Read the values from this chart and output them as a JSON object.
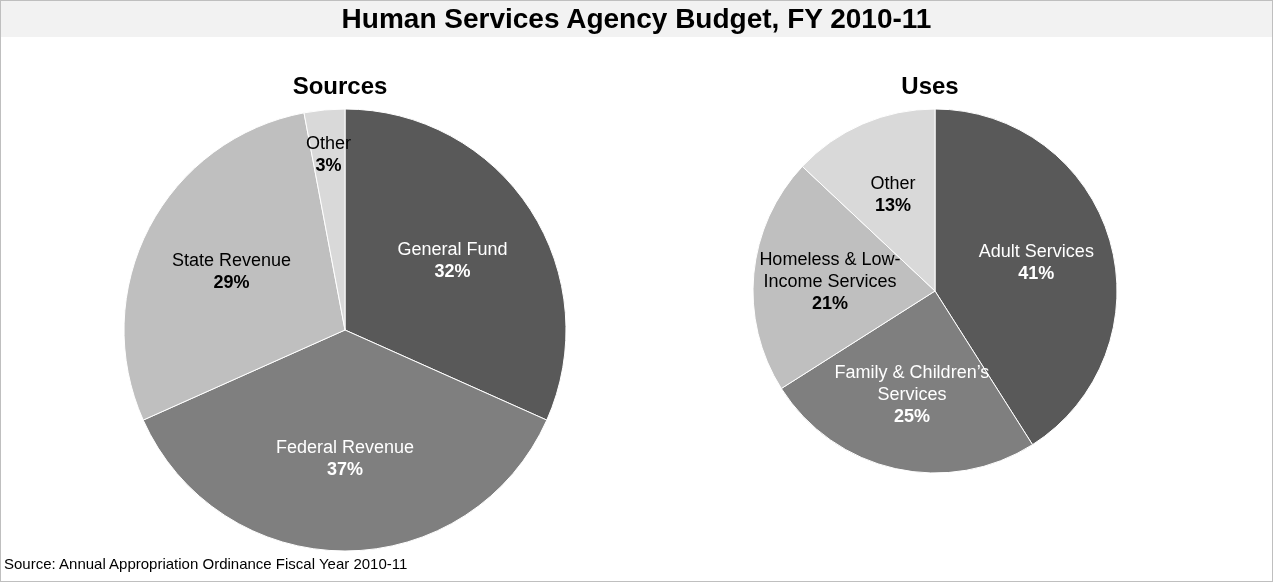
{
  "chart_data": [
    {
      "type": "pie",
      "title": "Human Services Agency Budget, FY 2010-11",
      "subtitle": "Sources",
      "categories": [
        "General Fund",
        "Federal Revenue",
        "State Revenue",
        "Other"
      ],
      "values": [
        32,
        37,
        29,
        3
      ],
      "colors": [
        "#595959",
        "#7f7f7f",
        "#bfbfbf",
        "#d9d9d9"
      ],
      "value_labels": [
        "32%",
        "37%",
        "29%",
        "3%"
      ],
      "legend": false,
      "annotations": [
        "Source: Annual Appropriation Ordinance Fiscal Year 2010-11"
      ]
    },
    {
      "type": "pie",
      "subtitle": "Uses",
      "categories": [
        "Adult Services",
        "Family & Children’s Services",
        "Homeless & Low-Income Services",
        "Other"
      ],
      "values": [
        41,
        25,
        21,
        13
      ],
      "colors": [
        "#595959",
        "#7f7f7f",
        "#bfbfbf",
        "#d9d9d9"
      ],
      "value_labels": [
        "41%",
        "25%",
        "21%",
        "13%"
      ],
      "legend": false
    }
  ]
}
